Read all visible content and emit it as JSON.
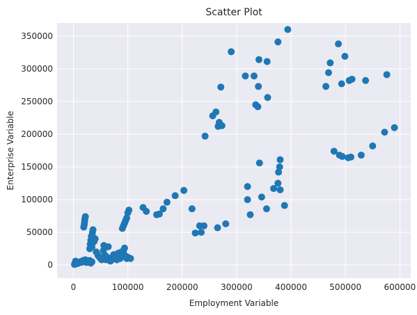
{
  "chart_data": {
    "type": "scatter",
    "title": "Scatter Plot",
    "xlabel": "Employment Variable",
    "ylabel": "Enterprise Variable",
    "xlim": [
      -30000,
      620000
    ],
    "ylim": [
      -20000,
      370000
    ],
    "xticks": [
      0,
      100000,
      200000,
      300000,
      400000,
      500000,
      600000
    ],
    "yticks": [
      0,
      50000,
      100000,
      150000,
      200000,
      250000,
      300000,
      350000
    ],
    "xtick_labels": [
      "0",
      "100000",
      "200000",
      "300000",
      "400000",
      "500000",
      "600000"
    ],
    "ytick_labels": [
      "0",
      "50000",
      "100000",
      "150000",
      "200000",
      "250000",
      "300000",
      "350000"
    ],
    "grid": true,
    "colors": {
      "marker": "#1f77b4",
      "plot_bg": "#eaeaf2",
      "grid": "#ffffff"
    },
    "points": [
      {
        "x": 2000,
        "y": 1000
      },
      {
        "x": 3000,
        "y": 3000
      },
      {
        "x": 4000,
        "y": 6000
      },
      {
        "x": 5000,
        "y": 2000
      },
      {
        "x": 6000,
        "y": 4000
      },
      {
        "x": 8000,
        "y": 2500
      },
      {
        "x": 10000,
        "y": 3500
      },
      {
        "x": 12000,
        "y": 5000
      },
      {
        "x": 14000,
        "y": 4000
      },
      {
        "x": 16000,
        "y": 6000
      },
      {
        "x": 18000,
        "y": 7000
      },
      {
        "x": 20000,
        "y": 5000
      },
      {
        "x": 22000,
        "y": 8000
      },
      {
        "x": 24000,
        "y": 4000
      },
      {
        "x": 26000,
        "y": 6000
      },
      {
        "x": 28000,
        "y": 5000
      },
      {
        "x": 30000,
        "y": 7000
      },
      {
        "x": 32000,
        "y": 3000
      },
      {
        "x": 34000,
        "y": 5000
      },
      {
        "x": 19000,
        "y": 58000
      },
      {
        "x": 20000,
        "y": 62000
      },
      {
        "x": 20500,
        "y": 66000
      },
      {
        "x": 21000,
        "y": 70000
      },
      {
        "x": 22000,
        "y": 74000
      },
      {
        "x": 30000,
        "y": 25000
      },
      {
        "x": 31000,
        "y": 32000
      },
      {
        "x": 32000,
        "y": 38000
      },
      {
        "x": 33000,
        "y": 44000
      },
      {
        "x": 34000,
        "y": 28000
      },
      {
        "x": 35000,
        "y": 50000
      },
      {
        "x": 36000,
        "y": 54000
      },
      {
        "x": 37000,
        "y": 42000
      },
      {
        "x": 38000,
        "y": 36000
      },
      {
        "x": 40000,
        "y": 40000
      },
      {
        "x": 42000,
        "y": 20000
      },
      {
        "x": 45000,
        "y": 15000
      },
      {
        "x": 48000,
        "y": 12000
      },
      {
        "x": 50000,
        "y": 10000
      },
      {
        "x": 52000,
        "y": 8000
      },
      {
        "x": 55000,
        "y": 22000
      },
      {
        "x": 56000,
        "y": 30000
      },
      {
        "x": 58000,
        "y": 15000
      },
      {
        "x": 60000,
        "y": 8000
      },
      {
        "x": 62000,
        "y": 12000
      },
      {
        "x": 64000,
        "y": 28000
      },
      {
        "x": 66000,
        "y": 10000
      },
      {
        "x": 68000,
        "y": 6000
      },
      {
        "x": 70000,
        "y": 8000
      },
      {
        "x": 72000,
        "y": 12000
      },
      {
        "x": 74000,
        "y": 16000
      },
      {
        "x": 76000,
        "y": 10000
      },
      {
        "x": 78000,
        "y": 14000
      },
      {
        "x": 80000,
        "y": 8000
      },
      {
        "x": 82000,
        "y": 18000
      },
      {
        "x": 84000,
        "y": 12000
      },
      {
        "x": 86000,
        "y": 10000
      },
      {
        "x": 88000,
        "y": 20000
      },
      {
        "x": 90000,
        "y": 16000
      },
      {
        "x": 92000,
        "y": 22000
      },
      {
        "x": 94000,
        "y": 26000
      },
      {
        "x": 96000,
        "y": 14000
      },
      {
        "x": 98000,
        "y": 10000
      },
      {
        "x": 100000,
        "y": 12000
      },
      {
        "x": 105000,
        "y": 10000
      },
      {
        "x": 90000,
        "y": 56000
      },
      {
        "x": 92000,
        "y": 60000
      },
      {
        "x": 94000,
        "y": 64000
      },
      {
        "x": 96000,
        "y": 68000
      },
      {
        "x": 98000,
        "y": 72000
      },
      {
        "x": 100000,
        "y": 80000
      },
      {
        "x": 102000,
        "y": 84000
      },
      {
        "x": 128000,
        "y": 88000
      },
      {
        "x": 134000,
        "y": 82000
      },
      {
        "x": 153000,
        "y": 77000
      },
      {
        "x": 158000,
        "y": 78000
      },
      {
        "x": 165000,
        "y": 86000
      },
      {
        "x": 172000,
        "y": 96000
      },
      {
        "x": 187000,
        "y": 106000
      },
      {
        "x": 203000,
        "y": 114000
      },
      {
        "x": 218000,
        "y": 86000
      },
      {
        "x": 224000,
        "y": 49000
      },
      {
        "x": 232000,
        "y": 60000
      },
      {
        "x": 235000,
        "y": 50000
      },
      {
        "x": 240000,
        "y": 60000
      },
      {
        "x": 242000,
        "y": 197000
      },
      {
        "x": 256000,
        "y": 228000
      },
      {
        "x": 262000,
        "y": 234000
      },
      {
        "x": 266000,
        "y": 212000
      },
      {
        "x": 268000,
        "y": 218000
      },
      {
        "x": 271000,
        "y": 272000
      },
      {
        "x": 273000,
        "y": 213000
      },
      {
        "x": 265000,
        "y": 57000
      },
      {
        "x": 280000,
        "y": 63000
      },
      {
        "x": 290000,
        "y": 326000
      },
      {
        "x": 316000,
        "y": 289000
      },
      {
        "x": 332000,
        "y": 289000
      },
      {
        "x": 335000,
        "y": 245000
      },
      {
        "x": 339000,
        "y": 242000
      },
      {
        "x": 340000,
        "y": 273000
      },
      {
        "x": 341000,
        "y": 314000
      },
      {
        "x": 356000,
        "y": 311000
      },
      {
        "x": 357000,
        "y": 256000
      },
      {
        "x": 376000,
        "y": 341000
      },
      {
        "x": 394000,
        "y": 360000
      },
      {
        "x": 320000,
        "y": 120000
      },
      {
        "x": 320000,
        "y": 100000
      },
      {
        "x": 325000,
        "y": 77000
      },
      {
        "x": 342000,
        "y": 156000
      },
      {
        "x": 346000,
        "y": 104000
      },
      {
        "x": 355000,
        "y": 86000
      },
      {
        "x": 368000,
        "y": 117000
      },
      {
        "x": 376000,
        "y": 125000
      },
      {
        "x": 377000,
        "y": 142000
      },
      {
        "x": 379000,
        "y": 150000
      },
      {
        "x": 380000,
        "y": 161000
      },
      {
        "x": 380000,
        "y": 115000
      },
      {
        "x": 388000,
        "y": 91000
      },
      {
        "x": 464000,
        "y": 273000
      },
      {
        "x": 469000,
        "y": 294000
      },
      {
        "x": 472000,
        "y": 309000
      },
      {
        "x": 487000,
        "y": 338000
      },
      {
        "x": 493000,
        "y": 277000
      },
      {
        "x": 499000,
        "y": 319000
      },
      {
        "x": 507000,
        "y": 282000
      },
      {
        "x": 512000,
        "y": 284000
      },
      {
        "x": 537000,
        "y": 282000
      },
      {
        "x": 576000,
        "y": 291000
      },
      {
        "x": 479000,
        "y": 174000
      },
      {
        "x": 489000,
        "y": 168000
      },
      {
        "x": 494000,
        "y": 166000
      },
      {
        "x": 505000,
        "y": 164000
      },
      {
        "x": 510000,
        "y": 165000
      },
      {
        "x": 529000,
        "y": 168000
      },
      {
        "x": 550000,
        "y": 182000
      },
      {
        "x": 572000,
        "y": 203000
      },
      {
        "x": 590000,
        "y": 210000
      }
    ]
  }
}
